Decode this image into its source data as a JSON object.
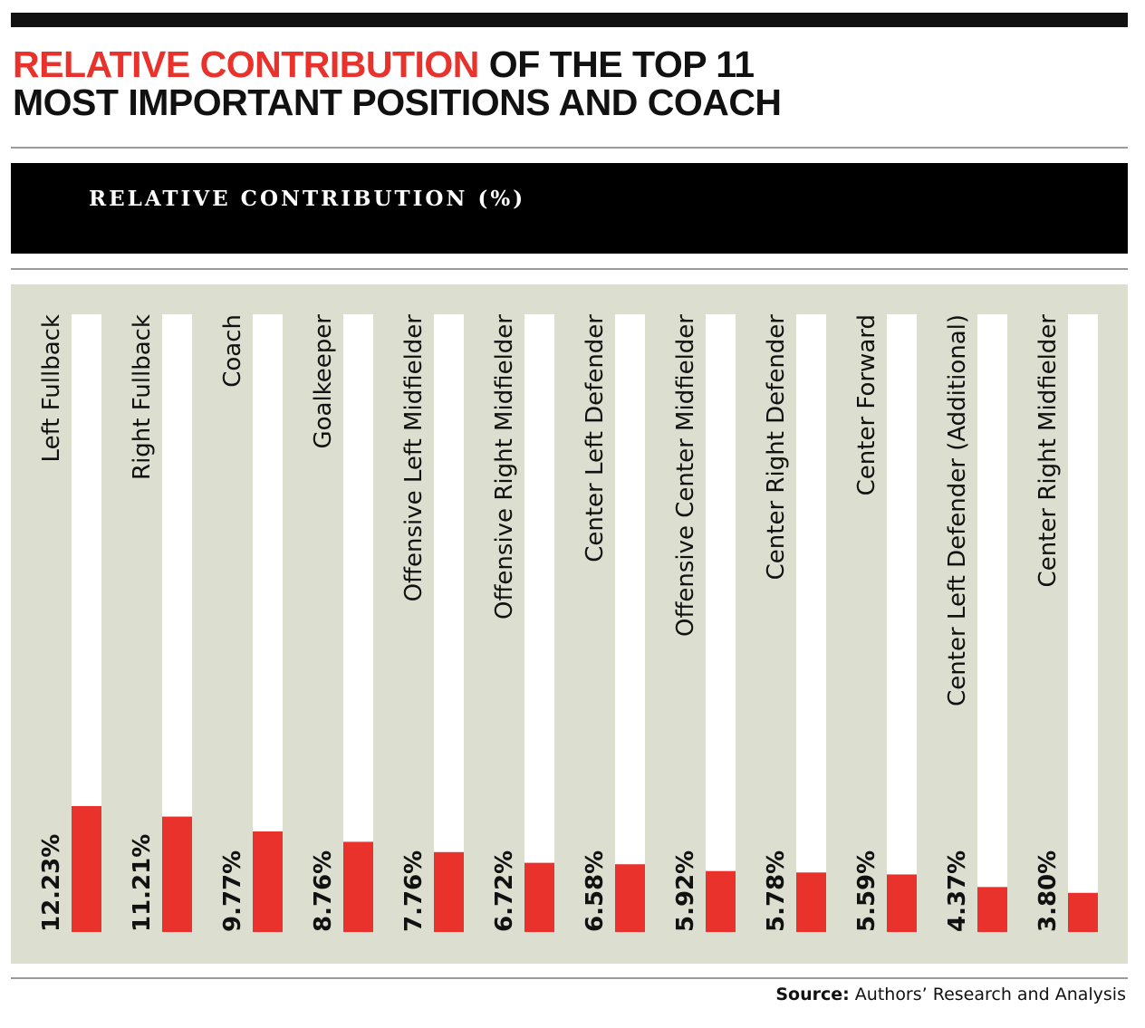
{
  "title": {
    "highlight": "RELATIVE CONTRIBUTION",
    "line1_rest": " OF THE TOP 11",
    "line2": "MOST IMPORTANT POSITIONS AND COACH"
  },
  "band_label": "RELATIVE CONTRIBUTION (%)",
  "source": {
    "label": "Source:",
    "text": "Authors’ Research and Analysis"
  },
  "colors": {
    "accent": "#e8322b",
    "plot_bg": "#dcdfd0",
    "track": "#ffffff",
    "band": "#000000"
  },
  "chart_data": {
    "type": "bar",
    "title": "RELATIVE CONTRIBUTION OF THE TOP 11 MOST IMPORTANT POSITIONS AND COACH",
    "ylabel": "RELATIVE CONTRIBUTION (%)",
    "xlabel": "",
    "ylim": [
      0,
      60
    ],
    "grid": false,
    "categories": [
      "Left Fullback",
      "Right Fullback",
      "Coach",
      "Goalkeeper",
      "Offensive Left Midfielder",
      "Offensive Right Midfielder",
      "Center Left Defender",
      "Offensive Center Midfielder",
      "Center Right Defender",
      "Center Forward",
      "Center Left Defender (Additional)",
      "Center Right Midfielder"
    ],
    "values": [
      12.23,
      11.21,
      9.77,
      8.76,
      7.76,
      6.72,
      6.58,
      5.92,
      5.78,
      5.59,
      4.37,
      3.8
    ],
    "value_labels": [
      "12.23%",
      "11.21%",
      "9.77%",
      "8.76%",
      "7.76%",
      "6.72%",
      "6.58%",
      "5.92%",
      "5.78%",
      "5.59%",
      "4.37%",
      "3.80%"
    ]
  }
}
